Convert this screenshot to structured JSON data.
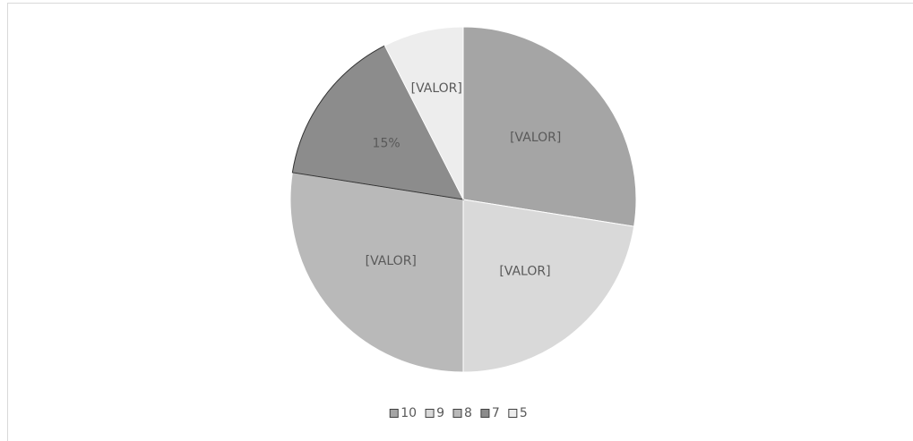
{
  "chart_data": {
    "type": "pie",
    "categories": [
      "10",
      "9",
      "8",
      "7",
      "5"
    ],
    "values": [
      27.5,
      22.5,
      27.5,
      15,
      7.5
    ],
    "value_labels": [
      "[VALOR]",
      "[VALOR]",
      "[VALOR]",
      "15%",
      "[VALOR]"
    ],
    "colors": [
      "#a5a5a5",
      "#d9d9d9",
      "#b9b9b9",
      "#8c8c8c",
      "#ededed"
    ],
    "legend": "bottom"
  }
}
